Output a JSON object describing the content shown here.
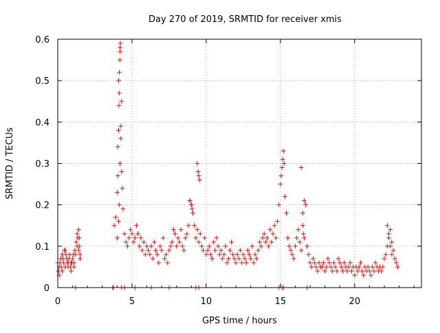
{
  "chart_data": {
    "type": "scatter",
    "title": "Day 270 of 2019, SRMTID for receiver xmis",
    "xlabel": "GPS time / hours",
    "ylabel": "SRMTID / TECUs",
    "xlim": [
      0,
      24.5
    ],
    "ylim": [
      0,
      0.6
    ],
    "xticks": [
      0,
      5,
      10,
      15,
      20
    ],
    "yticks": [
      0,
      0.1,
      0.2,
      0.3,
      0.4,
      0.5,
      0.6
    ],
    "xtick_labels": [
      "0",
      "5",
      "10",
      "15",
      "20"
    ],
    "ytick_labels": [
      "0",
      "0.1",
      "0.2",
      "0.3",
      "0.4",
      "0.5",
      "0.6"
    ],
    "grid": true,
    "marker": "+",
    "color": "#ff0000",
    "series": [
      {
        "name": "SRMTID",
        "x": [
          0.0,
          0.1,
          0.2,
          0.3,
          0.4,
          0.5,
          0.6,
          0.7,
          0.8,
          0.9,
          1.0,
          1.1,
          1.2,
          1.3,
          1.4,
          1.5,
          0.05,
          0.15,
          0.25,
          0.35,
          0.45,
          0.55,
          0.65,
          0.75,
          0.85,
          0.95,
          1.05,
          1.15,
          1.25,
          1.35,
          1.45,
          0.1,
          0.3,
          0.5,
          0.7,
          0.9,
          1.1,
          1.3,
          1.4,
          1.45,
          1.5,
          3.8,
          3.9,
          4.0,
          4.05,
          4.1,
          4.12,
          4.15,
          4.18,
          4.2,
          4.22,
          4.25,
          4.3,
          4.35,
          4.4,
          4.5,
          4.6,
          4.7,
          4.8,
          4.9,
          5.0,
          5.1,
          5.2,
          5.3,
          5.4,
          5.5,
          5.6,
          5.7,
          5.8,
          5.9,
          6.0,
          4.0,
          4.1,
          4.15,
          4.2,
          4.25,
          4.3,
          4.1,
          4.15,
          4.2,
          4.05,
          6.1,
          6.2,
          6.3,
          6.4,
          6.5,
          6.6,
          6.7,
          6.8,
          6.9,
          7.0,
          7.1,
          7.2,
          7.3,
          7.4,
          7.5,
          7.6,
          7.7,
          7.8,
          7.9,
          8.0,
          8.1,
          8.2,
          8.3,
          8.4,
          8.5,
          8.6,
          8.7,
          8.8,
          8.9,
          9.0,
          9.1,
          9.2,
          9.3,
          9.4,
          9.5,
          9.6,
          9.7,
          9.8,
          9.9,
          10.0,
          8.9,
          9.0,
          9.05,
          9.4,
          9.45,
          9.5,
          9.55,
          10.1,
          10.2,
          10.3,
          10.4,
          10.5,
          10.6,
          10.7,
          10.8,
          10.9,
          11.0,
          11.1,
          11.2,
          11.3,
          11.4,
          11.5,
          11.6,
          11.7,
          11.8,
          11.9,
          12.0,
          12.1,
          12.2,
          12.3,
          12.4,
          12.5,
          12.6,
          12.7,
          12.8,
          12.9,
          13.0,
          13.1,
          13.2,
          13.3,
          13.4,
          13.5,
          13.6,
          13.7,
          13.8,
          13.9,
          14.0,
          14.1,
          14.2,
          14.3,
          14.4,
          14.5,
          14.6,
          14.7,
          14.8,
          14.9,
          15.0,
          15.05,
          15.1,
          15.15,
          15.2,
          15.25,
          15.3,
          15.4,
          15.5,
          15.6,
          15.7,
          15.8,
          15.9,
          16.0,
          16.1,
          16.2,
          16.3,
          16.4,
          16.5,
          16.6,
          16.7,
          16.8,
          16.9,
          17.0,
          17.1,
          17.2,
          17.3,
          17.4,
          17.5,
          17.6,
          17.7,
          16.4,
          16.5,
          16.55,
          16.6,
          17.8,
          17.9,
          18.0,
          18.1,
          18.2,
          18.3,
          18.4,
          18.5,
          18.6,
          18.7,
          18.8,
          18.9,
          19.0,
          19.1,
          19.2,
          19.3,
          19.4,
          19.5,
          19.6,
          19.7,
          19.8,
          19.9,
          20.0,
          20.1,
          20.2,
          20.3,
          20.4,
          20.5,
          20.6,
          20.7,
          20.8,
          20.9,
          21.0,
          21.1,
          21.2,
          21.3,
          21.4,
          21.5,
          21.6,
          21.7,
          21.8,
          21.9,
          22.0,
          22.1,
          22.2,
          22.3,
          22.4,
          22.5,
          22.6,
          22.7,
          22.8,
          22.9,
          22.2,
          22.3,
          22.4,
          22.5,
          1.2,
          3.7,
          3.75,
          4.3,
          4.5,
          5.2,
          6.3,
          7.5,
          9.3,
          9.5,
          14.9,
          15.2,
          15.1,
          16.8
        ],
        "y": [
          0.06,
          0.05,
          0.07,
          0.08,
          0.06,
          0.09,
          0.07,
          0.05,
          0.08,
          0.06,
          0.07,
          0.06,
          0.08,
          0.1,
          0.09,
          0.07,
          0.04,
          0.06,
          0.05,
          0.07,
          0.09,
          0.08,
          0.06,
          0.07,
          0.05,
          0.06,
          0.08,
          0.09,
          0.11,
          0.12,
          0.1,
          0.03,
          0.04,
          0.05,
          0.06,
          0.04,
          0.05,
          0.13,
          0.14,
          0.12,
          0.08,
          0.15,
          0.17,
          0.23,
          0.34,
          0.38,
          0.44,
          0.47,
          0.55,
          0.58,
          0.59,
          0.36,
          0.28,
          0.24,
          0.19,
          0.13,
          0.11,
          0.1,
          0.12,
          0.14,
          0.13,
          0.11,
          0.12,
          0.15,
          0.13,
          0.1,
          0.12,
          0.09,
          0.11,
          0.08,
          0.1,
          0.12,
          0.16,
          0.2,
          0.3,
          0.39,
          0.45,
          0.5,
          0.52,
          0.57,
          0.27,
          0.09,
          0.08,
          0.1,
          0.07,
          0.11,
          0.09,
          0.08,
          0.06,
          0.1,
          0.09,
          0.12,
          0.07,
          0.08,
          0.06,
          0.09,
          0.1,
          0.11,
          0.14,
          0.13,
          0.1,
          0.12,
          0.11,
          0.14,
          0.1,
          0.09,
          0.12,
          0.13,
          0.15,
          0.21,
          0.2,
          0.18,
          0.15,
          0.12,
          0.14,
          0.11,
          0.13,
          0.1,
          0.09,
          0.12,
          0.08,
          0.21,
          0.2,
          0.19,
          0.3,
          0.28,
          0.27,
          0.26,
          0.09,
          0.1,
          0.08,
          0.07,
          0.11,
          0.09,
          0.12,
          0.1,
          0.08,
          0.09,
          0.07,
          0.08,
          0.1,
          0.06,
          0.07,
          0.09,
          0.11,
          0.08,
          0.07,
          0.06,
          0.08,
          0.07,
          0.09,
          0.06,
          0.08,
          0.07,
          0.06,
          0.09,
          0.08,
          0.07,
          0.1,
          0.06,
          0.08,
          0.07,
          0.09,
          0.11,
          0.1,
          0.12,
          0.13,
          0.11,
          0.12,
          0.1,
          0.14,
          0.11,
          0.13,
          0.15,
          0.12,
          0.16,
          0.2,
          0.25,
          0.27,
          0.29,
          0.31,
          0.33,
          0.3,
          0.22,
          0.18,
          0.12,
          0.1,
          0.09,
          0.08,
          0.07,
          0.1,
          0.12,
          0.14,
          0.11,
          0.09,
          0.18,
          0.21,
          0.2,
          0.1,
          0.08,
          0.06,
          0.05,
          0.07,
          0.06,
          0.05,
          0.04,
          0.06,
          0.05,
          0.29,
          0.15,
          0.13,
          0.12,
          0.05,
          0.06,
          0.04,
          0.05,
          0.07,
          0.06,
          0.05,
          0.04,
          0.06,
          0.05,
          0.04,
          0.07,
          0.06,
          0.05,
          0.04,
          0.06,
          0.05,
          0.04,
          0.05,
          0.06,
          0.04,
          0.05,
          0.03,
          0.05,
          0.04,
          0.05,
          0.06,
          0.04,
          0.03,
          0.05,
          0.04,
          0.05,
          0.04,
          0.03,
          0.05,
          0.04,
          0.06,
          0.05,
          0.04,
          0.05,
          0.04,
          0.05,
          0.07,
          0.08,
          0.1,
          0.12,
          0.14,
          0.11,
          0.09,
          0.07,
          0.06,
          0.05,
          0.15,
          0.13,
          0.1,
          0.08,
          0.0,
          0.0,
          0.0,
          0.0,
          0.0,
          0.0,
          0.0,
          0.0,
          0.0,
          0.0,
          0.0,
          0.0,
          0.0,
          0.0
        ]
      }
    ]
  }
}
